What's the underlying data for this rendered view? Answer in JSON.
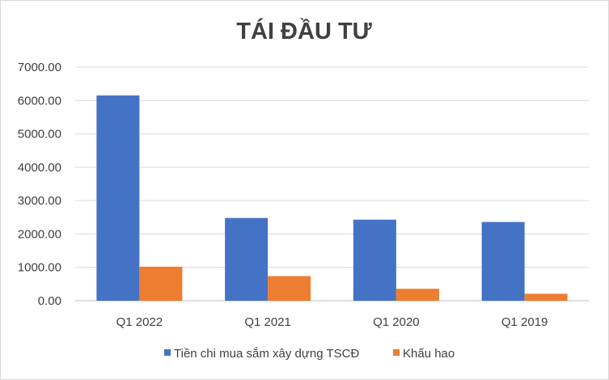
{
  "chart_data": {
    "type": "bar",
    "title": "TÁI ĐẦU TƯ",
    "xlabel": "",
    "ylabel": "",
    "categories": [
      "Q1 2022",
      "Q1 2021",
      "Q1 2020",
      "Q1 2019"
    ],
    "series": [
      {
        "name": "Tiền chi mua sắm xây dựng TSCĐ",
        "color": "#4472c4",
        "values": [
          6150,
          2480,
          2430,
          2360
        ]
      },
      {
        "name": "Khấu hao",
        "color": "#ed7d31",
        "values": [
          1020,
          740,
          360,
          210
        ]
      }
    ],
    "ylim": [
      0,
      7000
    ],
    "yticks": [
      "0.00",
      "1000.00",
      "2000.00",
      "3000.00",
      "4000.00",
      "5000.00",
      "6000.00",
      "7000.00"
    ],
    "ytick_values": [
      0,
      1000,
      2000,
      3000,
      4000,
      5000,
      6000,
      7000
    ],
    "grid": true,
    "legend_position": "bottom"
  }
}
